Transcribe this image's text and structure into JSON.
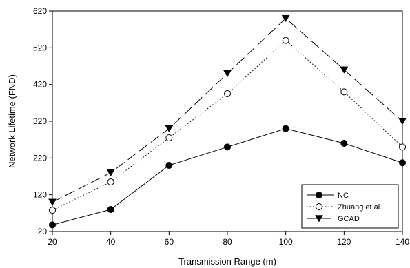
{
  "chart_data": {
    "type": "line",
    "xlabel": "Transmission Range (m)",
    "ylabel": "Network Lifetime (FND)",
    "x": [
      20,
      40,
      60,
      80,
      100,
      120,
      140
    ],
    "xlim": [
      20,
      140
    ],
    "ylim": [
      20,
      620
    ],
    "xticks": [
      "20",
      "40",
      "60",
      "80",
      "100",
      "120",
      "140"
    ],
    "yticks": [
      "20",
      "120",
      "220",
      "320",
      "420",
      "520",
      "620"
    ],
    "grid": false,
    "legend_position": "bottom-right",
    "series": [
      {
        "name": "NC",
        "values": [
          38,
          80,
          200,
          250,
          300,
          260,
          207
        ],
        "marker": "filled-circle",
        "line": "solid",
        "color": "#000000"
      },
      {
        "name": "Zhuang et al.",
        "values": [
          78,
          155,
          275,
          395,
          540,
          400,
          250
        ],
        "marker": "open-circle",
        "line": "dotted",
        "color": "#000000"
      },
      {
        "name": "GCAD",
        "values": [
          100,
          180,
          300,
          450,
          600,
          460,
          320
        ],
        "marker": "filled-triangle-down",
        "line": "dashed",
        "color": "#000000"
      }
    ]
  }
}
